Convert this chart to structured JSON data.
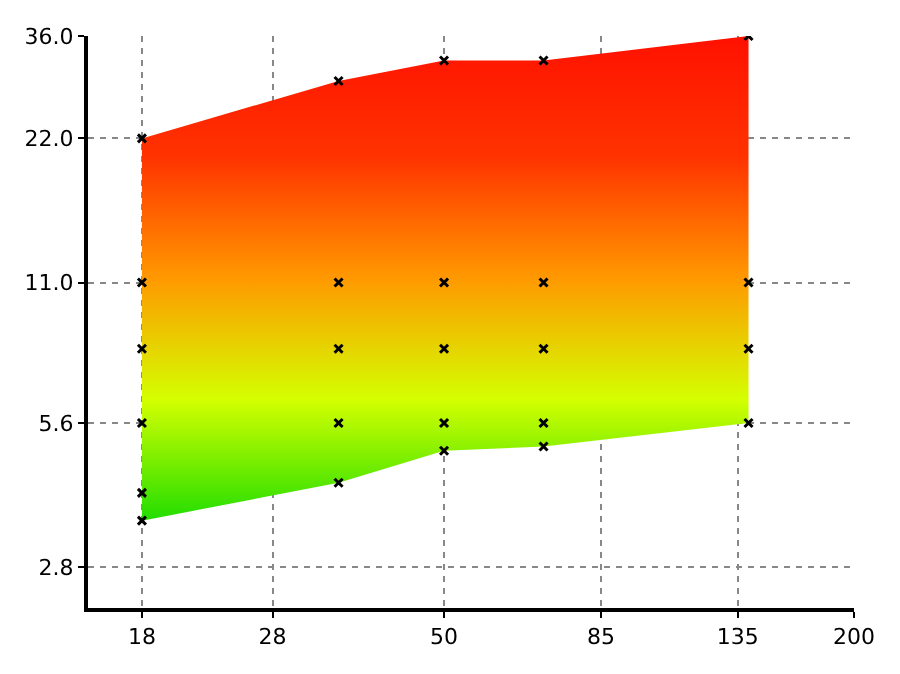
{
  "chart_data": {
    "type": "area",
    "log": "xy",
    "grid": true,
    "xlim": [
      15,
      200
    ],
    "ylim": [
      2.3,
      36
    ],
    "xticks": [
      18,
      28,
      50,
      85,
      135,
      200
    ],
    "yticks": [
      {
        "value": 2.8,
        "label": "2.8"
      },
      {
        "value": 5.6,
        "label": "5.6"
      },
      {
        "value": 11,
        "label": "11.0"
      },
      {
        "value": 22,
        "label": "22.0"
      },
      {
        "value": 36,
        "label": "36.0"
      }
    ],
    "series": [
      {
        "x": [
          18,
          35,
          50,
          70,
          140
        ],
        "values": [
          null,
          null,
          null,
          null,
          null
        ],
        "lower": [
          3.5,
          4.2,
          4.9,
          5.0,
          5.6
        ],
        "upper": [
          22,
          29,
          32,
          32,
          36
        ],
        "colors": [
          "#22dd00",
          "#d4ff00",
          "#ff9900",
          "#ff3300",
          "#ff1100"
        ]
      },
      {
        "type": "scatter",
        "marker": "cross",
        "color": "#000000",
        "x": [
          18,
          18,
          18,
          18,
          18,
          18,
          35,
          35,
          35,
          35,
          35,
          50,
          50,
          50,
          50,
          50,
          70,
          70,
          70,
          70,
          70,
          140,
          140,
          140,
          140
        ],
        "values": [
          22,
          11,
          8,
          5.6,
          4.0,
          3.5,
          29,
          11,
          8,
          5.6,
          4.2,
          32,
          11,
          8,
          5.6,
          4.9,
          32,
          11,
          8,
          5.6,
          5.0,
          36,
          11,
          8,
          5.6
        ]
      }
    ]
  }
}
